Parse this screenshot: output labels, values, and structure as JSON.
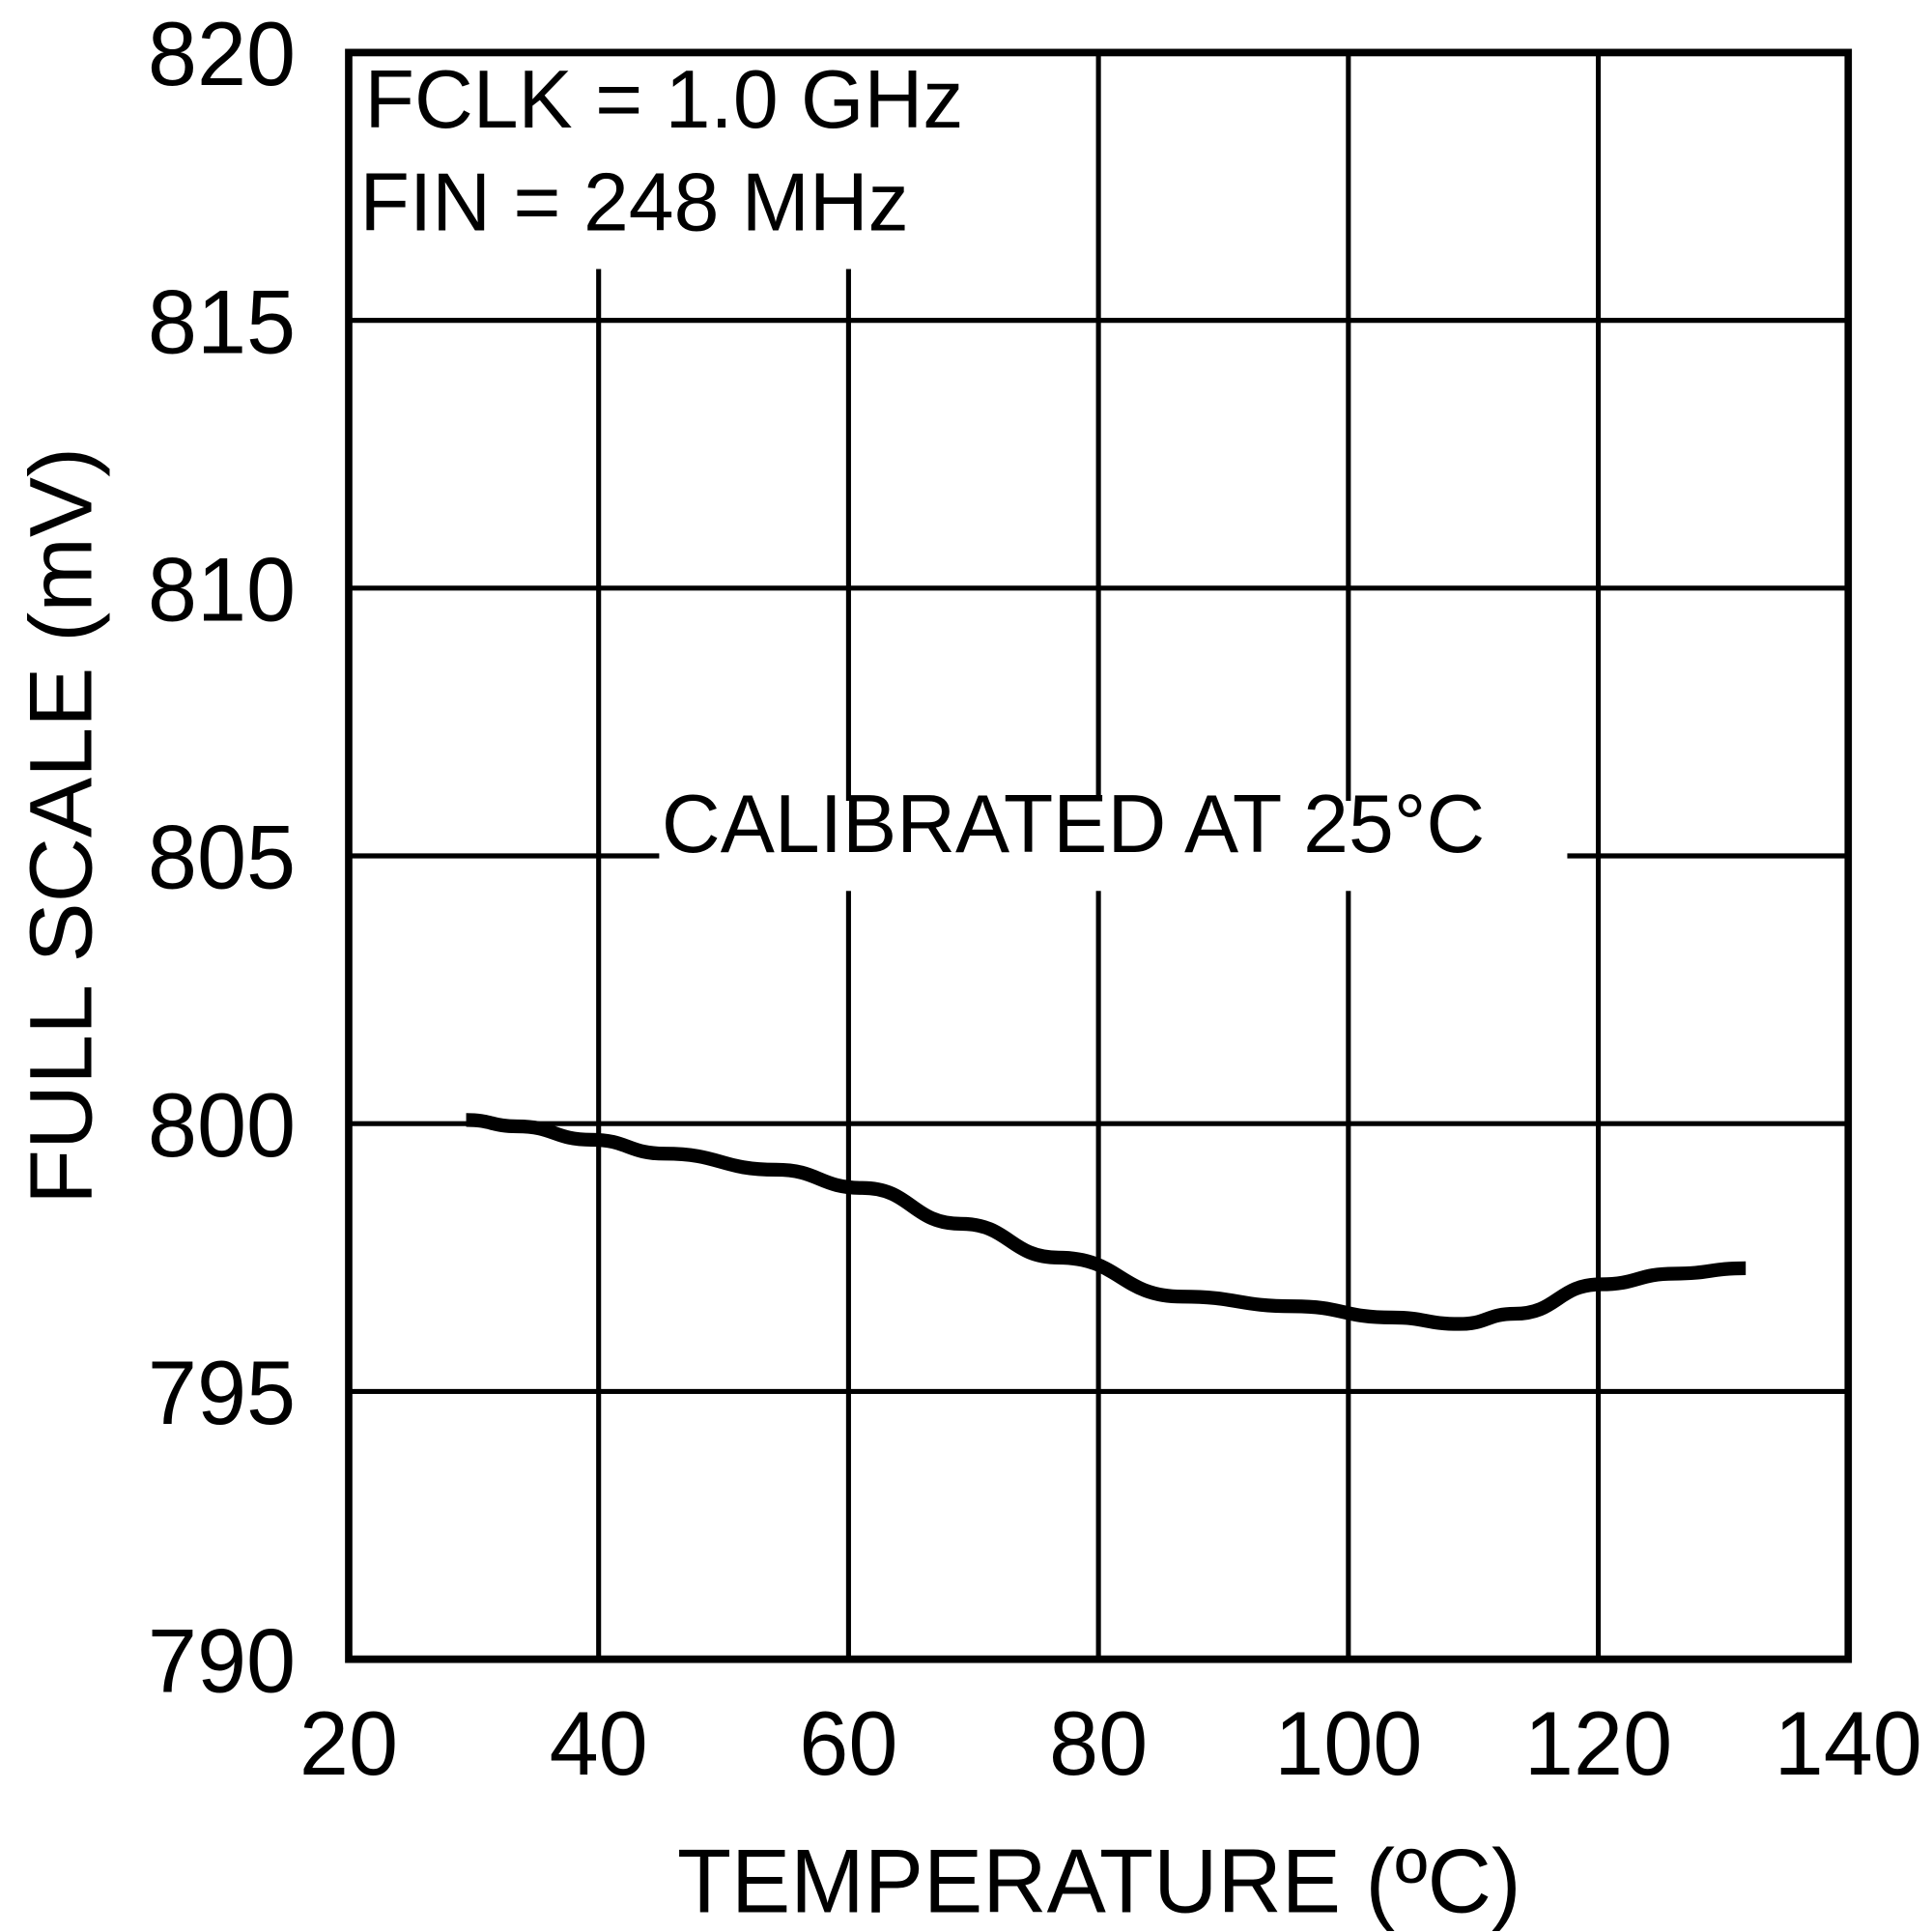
{
  "chart_data": {
    "type": "line",
    "title": "",
    "xlabel": "TEMPERATURE (ºC)",
    "ylabel": "FULL SCALE (mV)",
    "xlim": [
      20,
      140
    ],
    "ylim": [
      790,
      820
    ],
    "xticks": [
      20,
      40,
      60,
      80,
      100,
      120,
      140
    ],
    "yticks": [
      790,
      795,
      800,
      805,
      810,
      815,
      820
    ],
    "grid": true,
    "annotations": {
      "conditions": [
        "FCLK = 1.0 GHz",
        "FIN = 248 MHz"
      ],
      "calibration": "CALIBRATED AT 25°C"
    },
    "series": [
      {
        "name": "Full Scale",
        "color": "#000000",
        "x": [
          29.4,
          33.5,
          39.4,
          45.3,
          54.2,
          61.1,
          69.0,
          76.8,
          86.7,
          95.6,
          103.5,
          108.9,
          113.3,
          120.2,
          126.1,
          131.8
        ],
        "y": [
          800.07,
          799.95,
          799.7,
          799.44,
          799.14,
          798.8,
          798.13,
          797.5,
          796.77,
          796.59,
          796.38,
          796.26,
          796.45,
          797.0,
          797.2,
          797.3
        ]
      }
    ]
  }
}
